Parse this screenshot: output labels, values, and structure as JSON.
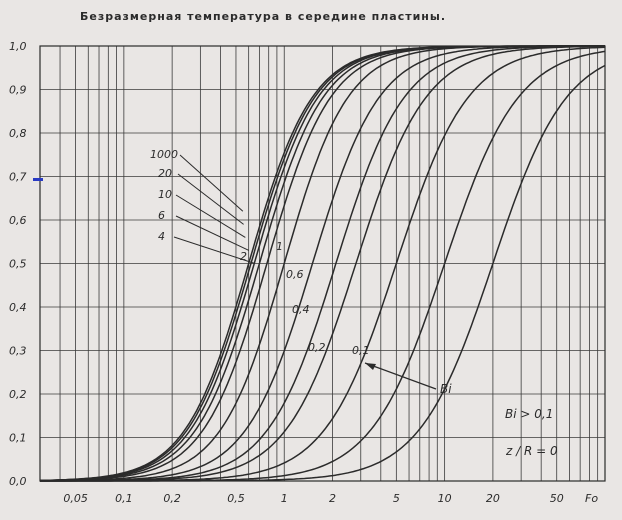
{
  "chart_data": {
    "type": "line",
    "title": "Безразмерная температура в середине пластины.",
    "xlabel": "Fo",
    "ylabel": "",
    "x_scale": "log",
    "xlim": [
      0.03,
      100
    ],
    "ylim": [
      0,
      1.0
    ],
    "grid": true,
    "x_ticks": [
      {
        "v": 0.05,
        "label": "0,05"
      },
      {
        "v": 0.1,
        "label": "0,1"
      },
      {
        "v": 0.2,
        "label": "0,2"
      },
      {
        "v": 0.5,
        "label": "0,5"
      },
      {
        "v": 1,
        "label": "1"
      },
      {
        "v": 2,
        "label": "2"
      },
      {
        "v": 5,
        "label": "5"
      },
      {
        "v": 10,
        "label": "10"
      },
      {
        "v": 20,
        "label": "20"
      },
      {
        "v": 50,
        "label": "50"
      }
    ],
    "y_ticks": [
      {
        "v": 0.0,
        "label": "0,0"
      },
      {
        "v": 0.1,
        "label": "0,1"
      },
      {
        "v": 0.2,
        "label": "0,2"
      },
      {
        "v": 0.3,
        "label": "0,3"
      },
      {
        "v": 0.4,
        "label": "0,4"
      },
      {
        "v": 0.5,
        "label": "0,5"
      },
      {
        "v": 0.6,
        "label": "0,6"
      },
      {
        "v": 0.7,
        "label": "0,7"
      },
      {
        "v": 0.8,
        "label": "0,8"
      },
      {
        "v": 0.9,
        "label": "0,9"
      },
      {
        "v": 1.0,
        "label": "1,0"
      }
    ],
    "series": [
      {
        "name": "1000",
        "mid_fo": 0.6,
        "steep": 2.2
      },
      {
        "name": "20",
        "mid_fo": 0.62,
        "steep": 2.2
      },
      {
        "name": "10",
        "mid_fo": 0.65,
        "steep": 2.2
      },
      {
        "name": "6",
        "mid_fo": 0.7,
        "steep": 2.2
      },
      {
        "name": "4",
        "mid_fo": 0.78,
        "steep": 2.2
      },
      {
        "name": "2",
        "mid_fo": 1.0,
        "steep": 2.2
      },
      {
        "name": "1",
        "mid_fo": 1.5,
        "steep": 2.1
      },
      {
        "name": "0,6",
        "mid_fo": 2.1,
        "steep": 2.05
      },
      {
        "name": "0,4",
        "mid_fo": 2.8,
        "steep": 2.0
      },
      {
        "name": "0,2",
        "mid_fo": 5.0,
        "steep": 1.95
      },
      {
        "name": "0,1",
        "mid_fo": 10.0,
        "steep": 1.9
      },
      {
        "name": "",
        "mid_fo": 20.0,
        "steep": 1.9
      }
    ],
    "annotations": {
      "bi_arrow": "Bi",
      "bi_condition": "Bi > 0,1",
      "position": "z / R = 0"
    },
    "colors": {
      "line": "#2b2b2b",
      "grid": "#3a3a3a",
      "paper": "#e9e6e4",
      "pen_mark": "#2a3bc4"
    }
  }
}
